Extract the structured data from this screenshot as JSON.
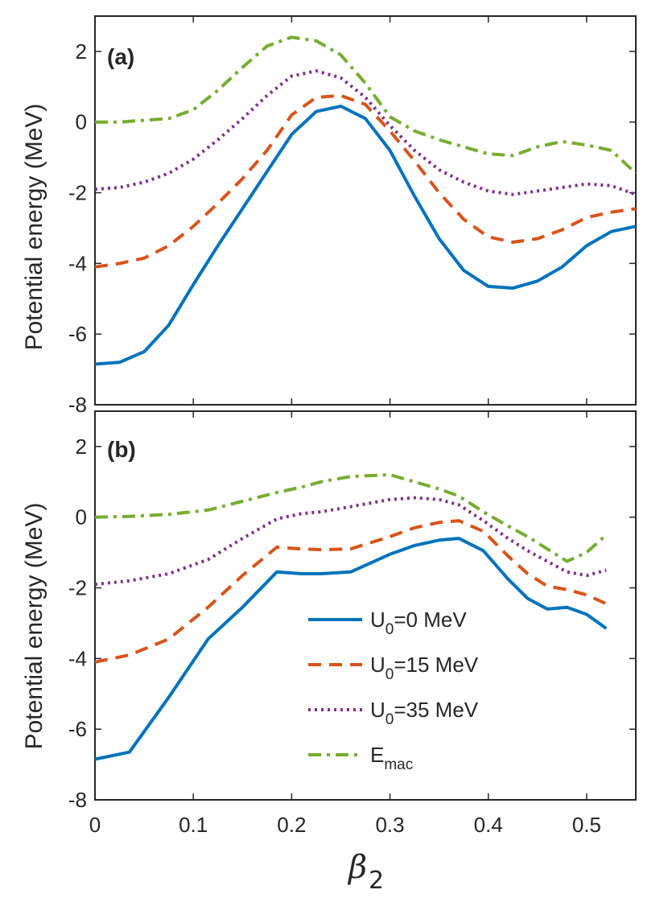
{
  "chart_data": {
    "type": "line",
    "xlabel_symbol": "β",
    "xlabel_subscript": "2",
    "ylabel": "Potential energy (MeV)",
    "xlim": [
      0,
      0.55
    ],
    "ylim": [
      -8,
      3
    ],
    "x_ticks": [
      0,
      0.1,
      0.2,
      0.3,
      0.4,
      0.5
    ],
    "x_tick_labels": [
      "0",
      "0.1",
      "0.2",
      "0.3",
      "0.4",
      "0.5"
    ],
    "y_ticks": [
      -8,
      -6,
      -4,
      -2,
      0,
      2
    ],
    "y_tick_labels": [
      "-8",
      "-6",
      "-4",
      "-2",
      "0",
      "2"
    ],
    "colors": {
      "u0_0": "#0072BD",
      "u0_15": "#D95319",
      "u0_35": "#7E2F8E",
      "emac": "#77AC30",
      "axis": "#262626"
    },
    "legend": {
      "placement": "bottom-right of panel (b)",
      "entries": [
        {
          "key": "u0_0",
          "main": "U",
          "sub": "0",
          "tail": "=0 MeV",
          "style": "solid"
        },
        {
          "key": "u0_15",
          "main": "U",
          "sub": "0",
          "tail": "=15 MeV",
          "style": "dashed"
        },
        {
          "key": "u0_35",
          "main": "U",
          "sub": "0",
          "tail": "=35 MeV",
          "style": "dotted"
        },
        {
          "key": "emac",
          "main": "E",
          "sub": "mac",
          "tail": "",
          "style": "dashdot"
        }
      ]
    },
    "panels": [
      {
        "label": "(a)",
        "series": [
          {
            "key": "u0_0",
            "style": "solid",
            "x": [
              0,
              0.025,
              0.05,
              0.075,
              0.1,
              0.125,
              0.15,
              0.175,
              0.2,
              0.225,
              0.25,
              0.275,
              0.3,
              0.325,
              0.35,
              0.375,
              0.4,
              0.425,
              0.45,
              0.475,
              0.5,
              0.525,
              0.55
            ],
            "y": [
              -6.85,
              -6.8,
              -6.5,
              -5.75,
              -4.6,
              -3.5,
              -2.45,
              -1.4,
              -0.35,
              0.3,
              0.45,
              0.1,
              -0.8,
              -2.1,
              -3.3,
              -4.2,
              -4.65,
              -4.7,
              -4.5,
              -4.1,
              -3.5,
              -3.1,
              -2.95
            ]
          },
          {
            "key": "u0_15",
            "style": "dashed",
            "x": [
              0,
              0.025,
              0.05,
              0.075,
              0.1,
              0.125,
              0.15,
              0.175,
              0.2,
              0.225,
              0.25,
              0.275,
              0.3,
              0.325,
              0.35,
              0.375,
              0.4,
              0.425,
              0.45,
              0.475,
              0.5,
              0.525,
              0.55
            ],
            "y": [
              -4.1,
              -4.0,
              -3.85,
              -3.5,
              -2.95,
              -2.3,
              -1.6,
              -0.8,
              0.2,
              0.7,
              0.75,
              0.5,
              -0.25,
              -1.1,
              -2.0,
              -2.75,
              -3.25,
              -3.4,
              -3.3,
              -3.05,
              -2.7,
              -2.55,
              -2.45
            ]
          },
          {
            "key": "u0_35",
            "style": "dotted",
            "x": [
              0,
              0.025,
              0.05,
              0.075,
              0.1,
              0.125,
              0.15,
              0.175,
              0.2,
              0.225,
              0.25,
              0.275,
              0.3,
              0.325,
              0.35,
              0.375,
              0.4,
              0.425,
              0.45,
              0.475,
              0.5,
              0.525,
              0.55
            ],
            "y": [
              -1.9,
              -1.85,
              -1.7,
              -1.45,
              -1.05,
              -0.5,
              0.1,
              0.75,
              1.3,
              1.45,
              1.25,
              0.7,
              -0.1,
              -0.8,
              -1.35,
              -1.7,
              -1.95,
              -2.05,
              -1.95,
              -1.85,
              -1.75,
              -1.8,
              -2.05
            ]
          },
          {
            "key": "emac",
            "style": "dashdot",
            "x": [
              0,
              0.025,
              0.05,
              0.075,
              0.1,
              0.125,
              0.15,
              0.175,
              0.2,
              0.225,
              0.25,
              0.275,
              0.3,
              0.325,
              0.35,
              0.375,
              0.4,
              0.425,
              0.45,
              0.475,
              0.5,
              0.525,
              0.55
            ],
            "y": [
              0.0,
              0.0,
              0.05,
              0.1,
              0.35,
              0.9,
              1.55,
              2.15,
              2.4,
              2.3,
              1.9,
              1.1,
              0.15,
              -0.25,
              -0.5,
              -0.7,
              -0.9,
              -0.95,
              -0.7,
              -0.55,
              -0.65,
              -0.8,
              -1.45
            ]
          }
        ]
      },
      {
        "label": "(b)",
        "series": [
          {
            "key": "u0_0",
            "style": "solid",
            "x": [
              0,
              0.035,
              0.075,
              0.115,
              0.15,
              0.185,
              0.21,
              0.23,
              0.26,
              0.3,
              0.325,
              0.35,
              0.37,
              0.395,
              0.42,
              0.44,
              0.46,
              0.48,
              0.5,
              0.52
            ],
            "y": [
              -6.85,
              -6.65,
              -5.1,
              -3.45,
              -2.55,
              -1.55,
              -1.6,
              -1.6,
              -1.55,
              -1.05,
              -0.8,
              -0.65,
              -0.6,
              -0.95,
              -1.75,
              -2.3,
              -2.6,
              -2.55,
              -2.75,
              -3.15
            ]
          },
          {
            "key": "u0_15",
            "style": "dashed",
            "x": [
              0,
              0.035,
              0.075,
              0.115,
              0.15,
              0.185,
              0.21,
              0.23,
              0.26,
              0.3,
              0.325,
              0.35,
              0.37,
              0.395,
              0.42,
              0.44,
              0.46,
              0.48,
              0.5,
              0.52
            ],
            "y": [
              -4.1,
              -3.9,
              -3.45,
              -2.55,
              -1.65,
              -0.85,
              -0.9,
              -0.92,
              -0.9,
              -0.55,
              -0.3,
              -0.15,
              -0.1,
              -0.4,
              -1.1,
              -1.6,
              -1.95,
              -2.05,
              -2.2,
              -2.45
            ]
          },
          {
            "key": "u0_35",
            "style": "dotted",
            "x": [
              0,
              0.035,
              0.075,
              0.115,
              0.15,
              0.185,
              0.21,
              0.23,
              0.26,
              0.3,
              0.325,
              0.35,
              0.37,
              0.395,
              0.42,
              0.44,
              0.46,
              0.48,
              0.5,
              0.52
            ],
            "y": [
              -1.9,
              -1.8,
              -1.6,
              -1.2,
              -0.6,
              -0.05,
              0.1,
              0.15,
              0.3,
              0.5,
              0.55,
              0.5,
              0.35,
              -0.1,
              -0.6,
              -0.95,
              -1.25,
              -1.55,
              -1.65,
              -1.5
            ]
          },
          {
            "key": "emac",
            "style": "dashdot",
            "x": [
              0,
              0.035,
              0.075,
              0.115,
              0.15,
              0.185,
              0.21,
              0.23,
              0.26,
              0.3,
              0.325,
              0.35,
              0.37,
              0.395,
              0.42,
              0.44,
              0.46,
              0.48,
              0.5,
              0.52
            ],
            "y": [
              0.0,
              0.02,
              0.08,
              0.2,
              0.45,
              0.7,
              0.85,
              1.0,
              1.15,
              1.2,
              1.0,
              0.8,
              0.6,
              0.15,
              -0.25,
              -0.55,
              -0.9,
              -1.25,
              -1.0,
              -0.5
            ]
          }
        ]
      }
    ]
  }
}
